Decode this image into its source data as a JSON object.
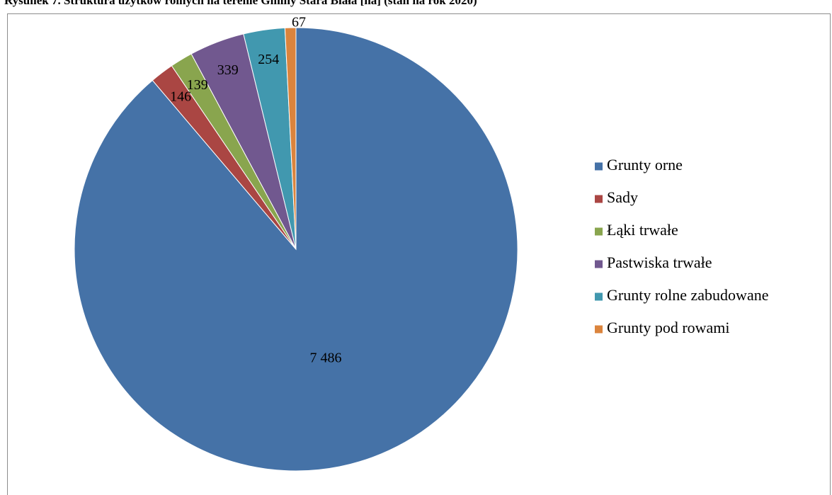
{
  "chart_data": {
    "type": "pie",
    "title": "Rysunek 7. Struktura użytków rolnych na terenie Gminy Stara Biała [ha] (stan na rok 2020)",
    "categories": [
      "Grunty orne",
      "Sady",
      "Łąki trwałe",
      "Pastwiska trwałe",
      "Grunty rolne zabudowane",
      "Grunty pod rowami"
    ],
    "values": [
      7486,
      146,
      139,
      339,
      254,
      67
    ],
    "data_labels": [
      "7 486",
      "146",
      "139",
      "339",
      "254",
      "67"
    ],
    "colors": [
      "#4572a7",
      "#aa4643",
      "#89a54e",
      "#71588f",
      "#4198af",
      "#db843d"
    ],
    "legend_position": "right",
    "start_angle": "12 o'clock",
    "direction": "clockwise"
  }
}
